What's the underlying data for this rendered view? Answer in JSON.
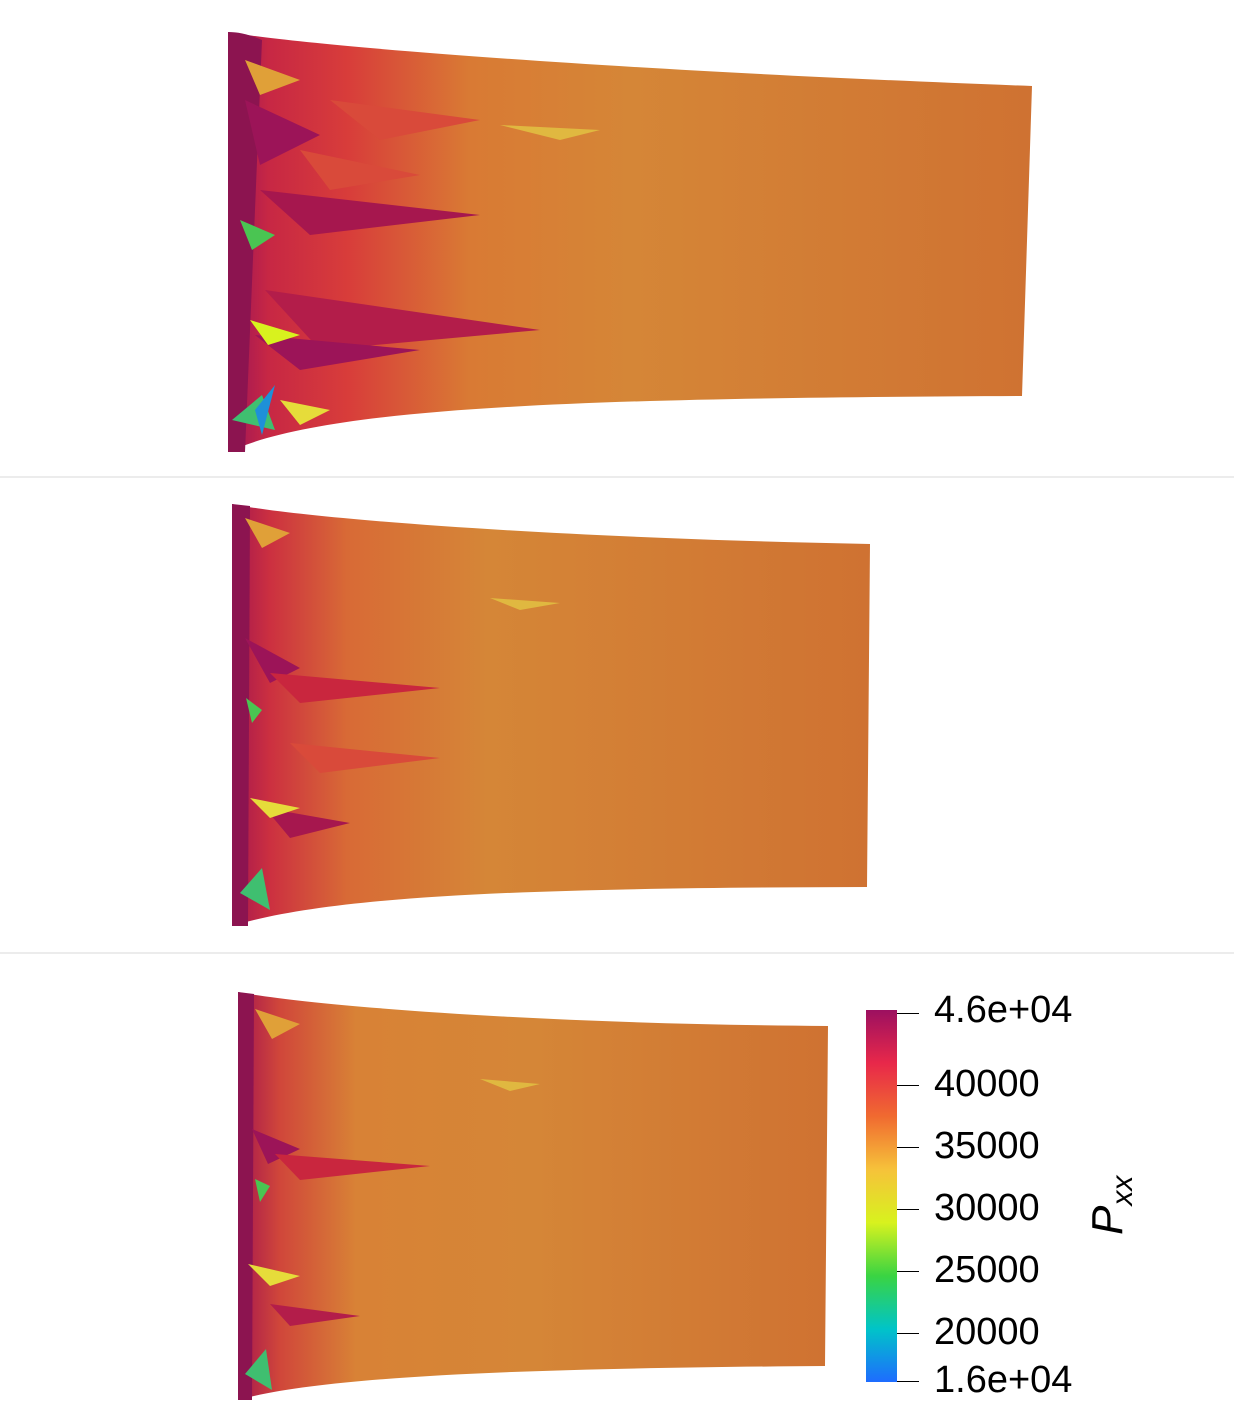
{
  "colorbar": {
    "title_main": "P",
    "title_sub": "xx",
    "tick_labels": [
      "4.6e+04",
      "40000",
      "35000",
      "30000",
      "25000",
      "20000",
      "1.6e+04"
    ],
    "tick_values": [
      46000,
      40000,
      35000,
      30000,
      25000,
      20000,
      16000
    ],
    "range": [
      16000,
      46000
    ],
    "colormap": [
      "#1e6cff",
      "#00c4c8",
      "#3ad442",
      "#d8f21e",
      "#f6c23a",
      "#f06a30",
      "#e8284a",
      "#9c1060"
    ]
  },
  "colors": {
    "field_base": "#cf7232",
    "field_light": "#d9923a",
    "high_stress": "#8c1450",
    "mid_red": "#c9263e",
    "low_stress_yellow": "#eedc3c",
    "low_stress_green": "#4ac552",
    "divider": "#ececec"
  },
  "panels": [
    {
      "name": "deformed-mesh-1"
    },
    {
      "name": "deformed-mesh-2"
    },
    {
      "name": "deformed-mesh-3"
    }
  ]
}
